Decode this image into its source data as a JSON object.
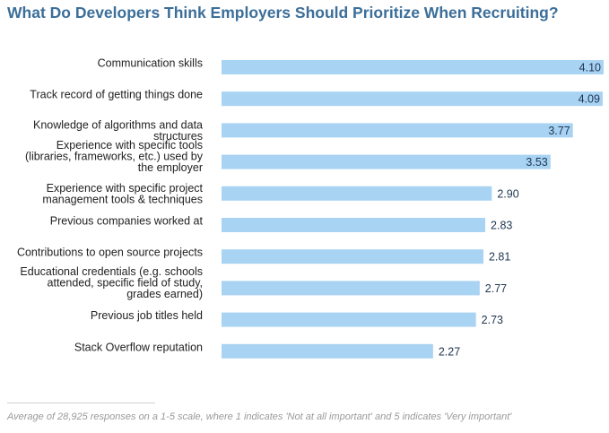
{
  "chart_data": {
    "type": "bar",
    "orientation": "horizontal",
    "title": "What Do Developers Think Employers Should Prioritize When Recruiting?",
    "categories": [
      [
        "Communication skills"
      ],
      [
        "Track record of getting things done"
      ],
      [
        "Knowledge of algorithms and data",
        "structures"
      ],
      [
        "Experience with specific tools",
        "(libraries, frameworks, etc.) used by",
        "the employer"
      ],
      [
        "Experience with specific project",
        "management tools & techniques"
      ],
      [
        "Previous companies worked at"
      ],
      [
        "Contributions to open source projects"
      ],
      [
        "Educational credentials (e.g. schools",
        "attended, specific field of study,",
        "grades earned)"
      ],
      [
        "Previous job titles held"
      ],
      [
        "Stack Overflow reputation"
      ]
    ],
    "values": [
      4.1,
      4.09,
      3.77,
      3.53,
      2.9,
      2.83,
      2.81,
      2.77,
      2.73,
      2.27
    ],
    "value_labels": [
      "4.10",
      "4.09",
      "3.77",
      "3.53",
      "2.90",
      "2.83",
      "2.81",
      "2.77",
      "2.73",
      "2.27"
    ],
    "xlim": [
      0,
      4.1
    ],
    "grid": false,
    "legend": false,
    "bar_color": "#a8d3f3",
    "title_color": "#3b6e99"
  },
  "footnote": "Average of 28,925 responses on a 1-5 scale, where 1 indicates 'Not at all important' and 5 indicates 'Very important'"
}
